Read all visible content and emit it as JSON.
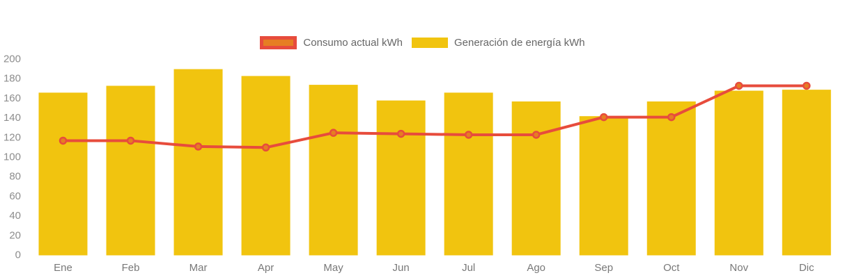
{
  "legend": {
    "items": [
      {
        "label": "Consumo actual kWh",
        "type": "line",
        "stroke": "#e74c3c",
        "fill": "#e67e22"
      },
      {
        "label": "Generación de energía kWh",
        "type": "bar",
        "fill": "#f1c40f"
      }
    ]
  },
  "chart_data": {
    "type": "bar+line",
    "categories": [
      "Ene",
      "Feb",
      "Mar",
      "Apr",
      "May",
      "Jun",
      "Jul",
      "Ago",
      "Sep",
      "Oct",
      "Nov",
      "Dic"
    ],
    "series": [
      {
        "name": "Generación de energía kWh",
        "type": "bar",
        "color": "#f1c40f",
        "values": [
          165,
          172,
          189,
          182,
          173,
          157,
          165,
          156,
          141,
          156,
          167,
          168
        ]
      },
      {
        "name": "Consumo actual kWh",
        "type": "line",
        "color": "#e74c3c",
        "marker_fill": "#e67e22",
        "values": [
          116,
          116,
          110,
          109,
          124,
          123,
          122,
          122,
          140,
          140,
          172,
          172
        ]
      }
    ],
    "title": "",
    "xlabel": "",
    "ylabel": "",
    "ylim": [
      0,
      200
    ],
    "y_ticks": [
      0,
      20,
      40,
      60,
      80,
      100,
      120,
      140,
      160,
      180,
      200
    ],
    "grid": false,
    "legend_position": "top-center"
  },
  "colors": {
    "bar": "#f1c40f",
    "line": "#e74c3c",
    "marker_fill": "#e67e22",
    "y_axis_text": "#8d8d8d",
    "x_axis_text": "#787878",
    "legend_text": "#666666",
    "background": "#ffffff"
  }
}
